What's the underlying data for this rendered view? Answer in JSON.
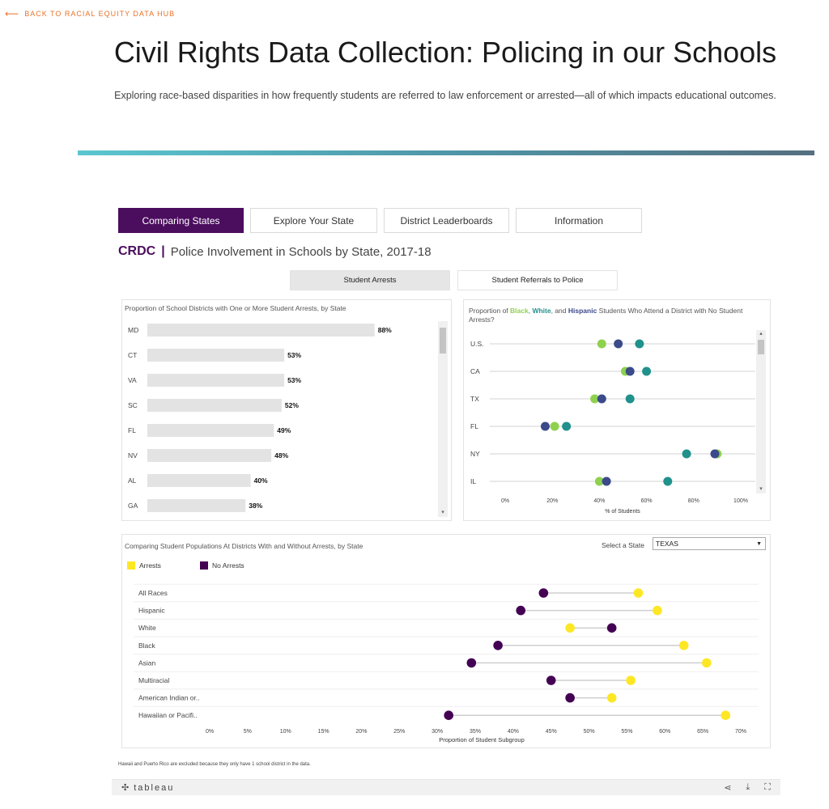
{
  "back_link": "BACK TO RACIAL EQUITY DATA HUB",
  "page_title": "Civil Rights Data Collection: Policing in our Schools",
  "page_subtitle": "Exploring race-based disparities in how frequently students are referred to law enforcement or arrested—all of which impacts educational outcomes.",
  "tabs": [
    {
      "label": "Comparing States",
      "active": true
    },
    {
      "label": "Explore Your State",
      "active": false
    },
    {
      "label": "District Leaderboards",
      "active": false
    },
    {
      "label": "Information",
      "active": false
    }
  ],
  "heading": {
    "brand": "CRDC",
    "separator": "|",
    "title": "Police Involvement in Schools by State, 2017-18"
  },
  "subtabs": [
    {
      "label": "Student Arrests",
      "active": true
    },
    {
      "label": "Student Referrals to Police",
      "active": false
    }
  ],
  "panel_left": {
    "title": "Proportion of School Districts with One or More Student Arrests, by State"
  },
  "panel_right": {
    "title_prefix": "Proportion of ",
    "title_black": "Black",
    "title_comma1": ", ",
    "title_white": "White",
    "title_and": ", and ",
    "title_hispanic": "Hispanic",
    "title_suffix": " Students Who Attend a District with No Student Arrests?"
  },
  "panel_bottom": {
    "title": "Comparing Student Populations At Districts With and Without Arrests, by State",
    "select_label": "Select a State",
    "select_value": "TEXAS",
    "legend_arrests": "Arrests",
    "legend_no_arrests": "No Arrests"
  },
  "footnote": "Hawaii and Puerto Rico are excluded because they only have 1 school district in the data.",
  "tableau_logo": "tableau",
  "colors": {
    "purple": "#4b0d5e",
    "black_group": "#8fd14f",
    "white_group": "#21918c",
    "hispanic_group": "#3b4a8a",
    "arrests": "#fde725",
    "no_arrests": "#440154",
    "bar": "#e3e3e3"
  },
  "chart_data": [
    {
      "type": "bar",
      "orientation": "horizontal",
      "title": "Proportion of School Districts with One or More Student Arrests, by State",
      "categories": [
        "MD",
        "CT",
        "VA",
        "SC",
        "FL",
        "NV",
        "AL",
        "GA"
      ],
      "values": [
        88,
        53,
        53,
        52,
        49,
        48,
        40,
        38
      ],
      "value_labels": [
        "88%",
        "53%",
        "53%",
        "52%",
        "49%",
        "48%",
        "40%",
        "38%"
      ],
      "xlim": [
        0,
        100
      ]
    },
    {
      "type": "scatter",
      "title": "Proportion of Black, White, and Hispanic Students Who Attend a District with No Student Arrests?",
      "xlabel": "% of Students",
      "x_ticks": [
        "0%",
        "20%",
        "40%",
        "60%",
        "80%",
        "100%"
      ],
      "xlim": [
        0,
        100
      ],
      "categories": [
        "U.S.",
        "CA",
        "TX",
        "FL",
        "NY",
        "IL"
      ],
      "series": [
        {
          "name": "Black",
          "values": [
            41,
            51,
            38,
            21,
            90,
            40
          ]
        },
        {
          "name": "White",
          "values": [
            57,
            60,
            53,
            26,
            77,
            69
          ]
        },
        {
          "name": "Hispanic",
          "values": [
            48,
            53,
            41,
            17,
            89,
            43
          ]
        }
      ]
    },
    {
      "type": "scatter",
      "title": "Comparing Student Populations At Districts With and Without Arrests, by State",
      "xlabel": "Proportion of Student Subgroup",
      "x_ticks": [
        "0%",
        "5%",
        "10%",
        "15%",
        "20%",
        "25%",
        "30%",
        "35%",
        "40%",
        "45%",
        "50%",
        "55%",
        "60%",
        "65%",
        "70%"
      ],
      "xlim": [
        0,
        70
      ],
      "categories": [
        "All Races",
        "Hispanic",
        "White",
        "Black",
        "Asian",
        "Multiracial",
        "American Indian or..",
        "Hawaiian or Pacifi.."
      ],
      "series": [
        {
          "name": "Arrests",
          "values": [
            56.5,
            59,
            47.5,
            62.5,
            65.5,
            55.5,
            53,
            68
          ]
        },
        {
          "name": "No Arrests",
          "values": [
            44,
            41,
            53,
            38,
            34.5,
            45,
            47.5,
            31.5
          ]
        }
      ]
    }
  ]
}
